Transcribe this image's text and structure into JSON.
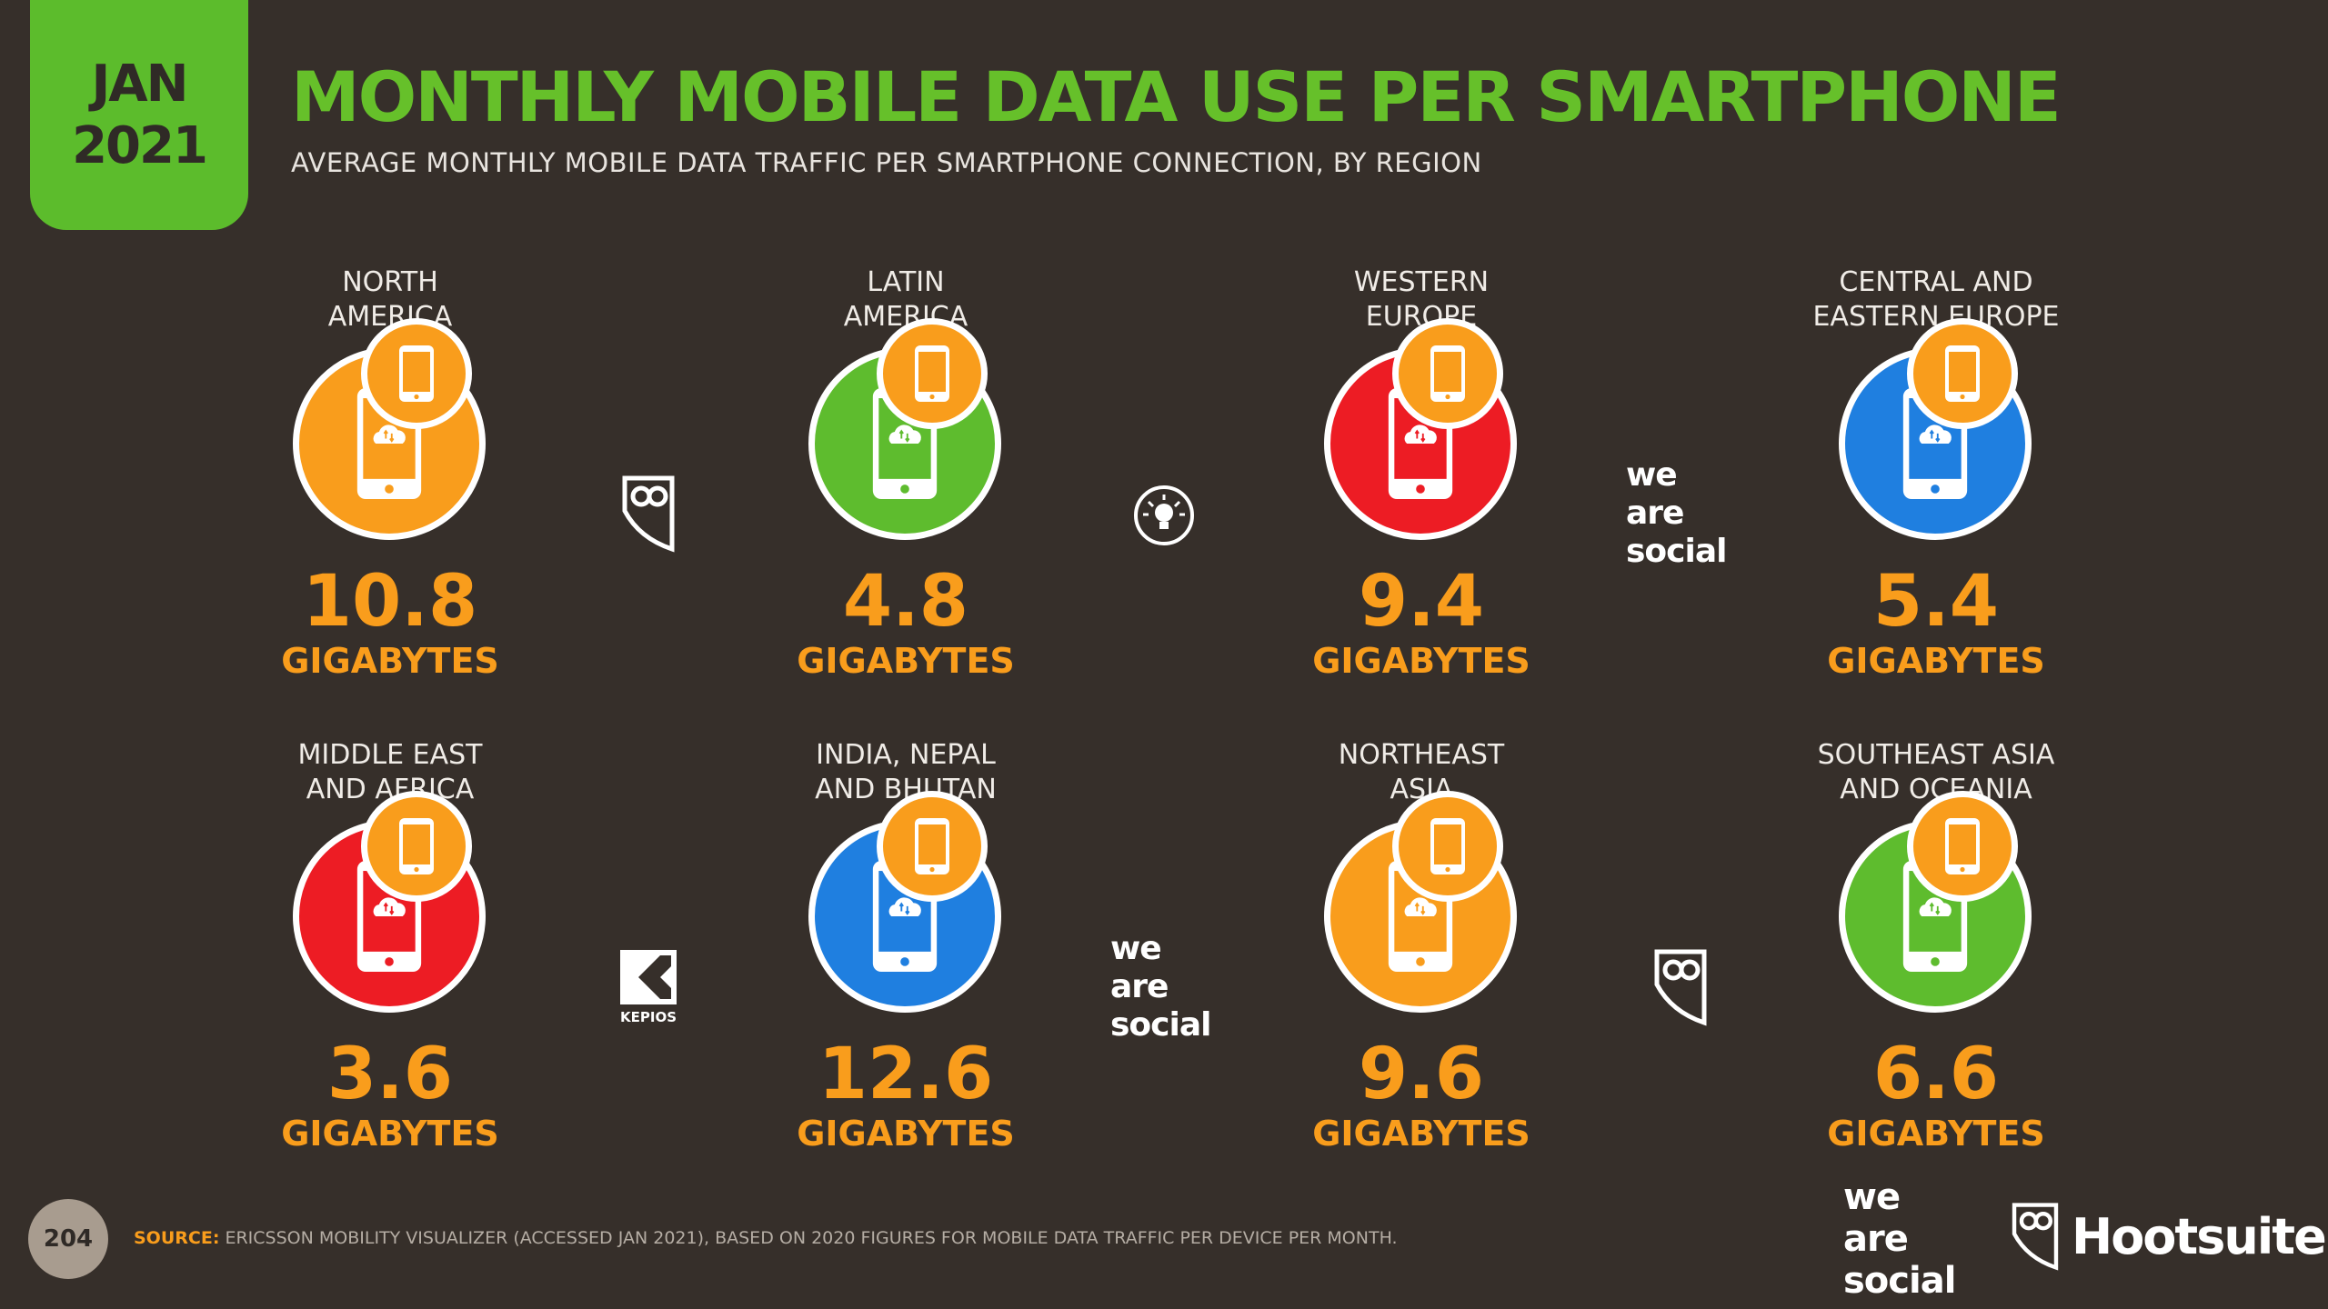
{
  "date": {
    "month": "JAN",
    "year": "2021"
  },
  "title": "MONTHLY MOBILE DATA USE PER SMARTPHONE",
  "subtitle": "AVERAGE MONTHLY MOBILE DATA TRAFFIC PER SMARTPHONE CONNECTION, BY REGION",
  "colors": {
    "orange": "#f99d1c",
    "green": "#5ebc2e",
    "red": "#ed1c24",
    "blue": "#1f7fe0",
    "background": "#362f2a",
    "accent": "#66c02a"
  },
  "unit": "GIGABYTES",
  "regions": [
    {
      "line1": "NORTH",
      "line2": "AMERICA",
      "value": "10.8",
      "unit": "GIGABYTES",
      "color": "#f99d1c"
    },
    {
      "line1": "LATIN",
      "line2": "AMERICA",
      "value": "4.8",
      "unit": "GIGABYTES",
      "color": "#5ebc2e"
    },
    {
      "line1": "WESTERN",
      "line2": "EUROPE",
      "value": "9.4",
      "unit": "GIGABYTES",
      "color": "#ed1c24"
    },
    {
      "line1": "CENTRAL AND",
      "line2": "EASTERN EUROPE",
      "value": "5.4",
      "unit": "GIGABYTES",
      "color": "#1f7fe0"
    },
    {
      "line1": "MIDDLE EAST",
      "line2": "AND AFRICA",
      "value": "3.6",
      "unit": "GIGABYTES",
      "color": "#ed1c24"
    },
    {
      "line1": "INDIA, NEPAL",
      "line2": "AND BHUTAN",
      "value": "12.6",
      "unit": "GIGABYTES",
      "color": "#1f7fe0"
    },
    {
      "line1": "NORTHEAST",
      "line2": "ASIA",
      "value": "9.6",
      "unit": "GIGABYTES",
      "color": "#f99d1c"
    },
    {
      "line1": "SOUTHEAST ASIA",
      "line2": "AND OCEANIA",
      "value": "6.6",
      "unit": "GIGABYTES",
      "color": "#5ebc2e"
    }
  ],
  "logos": {
    "we_are_social": [
      "we",
      "are",
      "social"
    ],
    "kepios": "KEPIOS",
    "hootsuite": "Hootsuite"
  },
  "footer": {
    "page": "204",
    "source_label": "SOURCE:",
    "source_text": "ERICSSON MOBILITY VISUALIZER (ACCESSED JAN 2021), BASED ON 2020 FIGURES FOR MOBILE DATA TRAFFIC PER DEVICE PER MONTH."
  }
}
